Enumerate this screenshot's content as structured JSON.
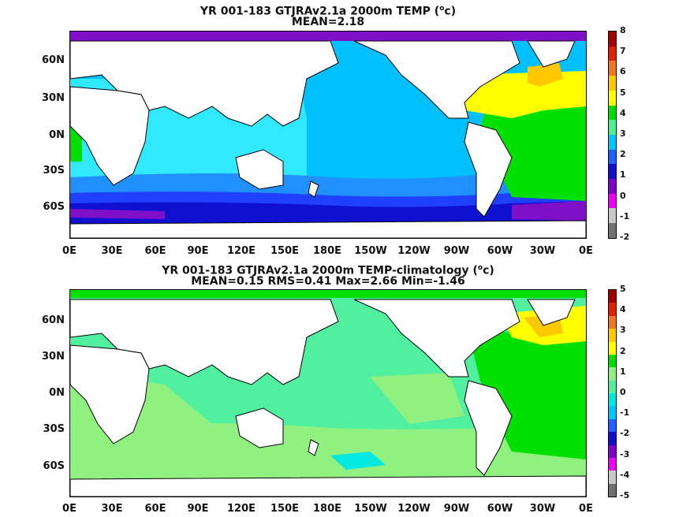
{
  "panel1": {
    "title": "YR 001-183 GTJRAv2.1a 2000m TEMP (",
    "title_sup": "o",
    "title_tail": "c)",
    "stats": "MEAN=2.18",
    "colorbar_labels": [
      "8",
      "7",
      "6",
      "5",
      "4",
      "3",
      "2",
      "1",
      "0",
      "-1",
      "-2"
    ],
    "colorbar_colors": [
      "#a00000",
      "#e02000",
      "#f07820",
      "#ffc800",
      "#ffff00",
      "#00e000",
      "#50f090",
      "#00c8ff",
      "#2060ff",
      "#1010c8",
      "#8000c8",
      "#f000f0",
      "#c8c8c8",
      "#707070"
    ]
  },
  "panel2": {
    "title": "YR 001-183 GTJRAv2.1a 2000m TEMP-climatology (",
    "title_sup": "o",
    "title_tail": "c)",
    "stats": "MEAN=0.15   RMS=0.41   Max=2.66   Min=-1.46",
    "colorbar_labels": [
      "5",
      "4",
      "3",
      "2",
      "1",
      "0",
      "-1",
      "-2",
      "-3",
      "-4",
      "-5"
    ],
    "colorbar_colors": [
      "#a00000",
      "#e02000",
      "#f07820",
      "#ffc800",
      "#ffff00",
      "#00e000",
      "#90f080",
      "#50f0a0",
      "#00e8e0",
      "#00c8ff",
      "#2060ff",
      "#1010c8",
      "#8000c8",
      "#f000f0",
      "#c8c8c8",
      "#707070"
    ]
  },
  "axes": {
    "y_labels": [
      "60N",
      "30N",
      "0N",
      "30S",
      "60S"
    ],
    "x_labels": [
      "0E",
      "30E",
      "60E",
      "90E",
      "120E",
      "150E",
      "180E",
      "150W",
      "120W",
      "90W",
      "60W",
      "30W",
      "0E"
    ]
  },
  "colors": {
    "p1_pacific": "#00c0ff",
    "p1_indian": "#30e8ff",
    "p1_southern_1": "#2090ff",
    "p1_southern_2": "#2040ff",
    "p1_southern_3": "#1010d0",
    "p1_antarctic": "#8010c8",
    "p1_atlantic_warm": "#00e000",
    "p1_atlantic_yellow": "#ffff00",
    "p1_atlantic_orange": "#ffc800",
    "p2_base": "#50f0a0",
    "p2_light": "#90f080",
    "p2_atlantic": "#00e000",
    "p2_yellow": "#ffff00",
    "p2_orange": "#ffc800",
    "p2_cyan": "#00e8e0",
    "land": "#ffffff"
  }
}
